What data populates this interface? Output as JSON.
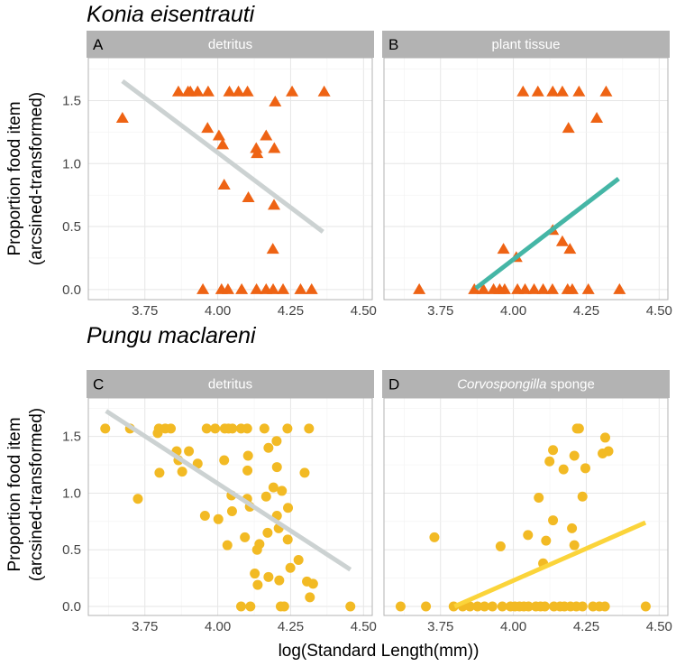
{
  "chart_data": {
    "type": "scatter",
    "xlabel": "log(Standard Length(mm))",
    "ylabel_line1": "Proportion food item",
    "ylabel_line2": "(arcsined-transformed)",
    "xlim": [
      3.556,
      4.53
    ],
    "ylim": [
      -0.08,
      1.84
    ],
    "x_ticks": [
      "3.75",
      "4.00",
      "4.25",
      "4.50"
    ],
    "x_tick_values": [
      3.75,
      4.0,
      4.25,
      4.5
    ],
    "y_ticks": [
      "0.0",
      "0.5",
      "1.0",
      "1.5"
    ],
    "y_tick_values": [
      0,
      0.5,
      1.0,
      1.5
    ],
    "grid": true,
    "colors": {
      "orange": "#EE6314",
      "yellow": "#F2BA24",
      "gray_line": "#CCD2D2",
      "teal_line": "#45B6A6",
      "yellow_line": "#FBD43A",
      "strip": "#B3B3B3",
      "grid": "#E6E6E6",
      "border": "#B3B3B3"
    },
    "species": [
      {
        "title": "Konia eisentrauti"
      },
      {
        "title": "Pungu maclareni"
      }
    ],
    "panels": [
      {
        "letter": "A",
        "strip_title": "detritus",
        "strip_title_italic": "",
        "marker": "triangle",
        "color": "#EE6314",
        "line_color": "#CCD2D2",
        "fit_line": [
          [
            3.673,
            1.655
          ],
          [
            4.361,
            0.458
          ]
        ],
        "points": [
          [
            3.865,
            1.57
          ],
          [
            3.898,
            1.57
          ],
          [
            3.906,
            1.57
          ],
          [
            3.931,
            1.57
          ],
          [
            3.967,
            1.57
          ],
          [
            4.04,
            1.57
          ],
          [
            4.071,
            1.57
          ],
          [
            4.102,
            1.57
          ],
          [
            4.255,
            1.57
          ],
          [
            4.365,
            1.57
          ],
          [
            3.673,
            1.36
          ],
          [
            4.197,
            1.49
          ],
          [
            3.965,
            1.28
          ],
          [
            4.004,
            1.22
          ],
          [
            4.017,
            1.15
          ],
          [
            4.166,
            1.22
          ],
          [
            4.132,
            1.12
          ],
          [
            4.135,
            1.08
          ],
          [
            4.194,
            1.12
          ],
          [
            4.022,
            0.83
          ],
          [
            4.105,
            0.73
          ],
          [
            4.193,
            0.67
          ],
          [
            4.189,
            0.32
          ],
          [
            3.949,
            0
          ],
          [
            4.013,
            0
          ],
          [
            4.035,
            0
          ],
          [
            4.082,
            0
          ],
          [
            4.133,
            0
          ],
          [
            4.166,
            0
          ],
          [
            4.19,
            0
          ],
          [
            4.224,
            0
          ],
          [
            4.284,
            0
          ],
          [
            4.322,
            0
          ]
        ]
      },
      {
        "letter": "B",
        "strip_title": "plant tissue",
        "strip_title_italic": "",
        "marker": "triangle",
        "color": "#EE6314",
        "line_color": "#45B6A6",
        "fit_line": [
          [
            3.871,
            0.01
          ],
          [
            4.361,
            0.88
          ]
        ],
        "points": [
          [
            4.033,
            1.57
          ],
          [
            4.084,
            1.57
          ],
          [
            4.135,
            1.57
          ],
          [
            4.168,
            1.57
          ],
          [
            4.225,
            1.57
          ],
          [
            4.318,
            1.57
          ],
          [
            4.286,
            1.36
          ],
          [
            4.189,
            1.28
          ],
          [
            4.135,
            0.47
          ],
          [
            4.168,
            0.38
          ],
          [
            4.194,
            0.32
          ],
          [
            3.966,
            0.32
          ],
          [
            4.01,
            0.255
          ],
          [
            3.677,
            0
          ],
          [
            3.866,
            0
          ],
          [
            3.897,
            0
          ],
          [
            3.932,
            0
          ],
          [
            3.953,
            0
          ],
          [
            3.97,
            0
          ],
          [
            4.014,
            0
          ],
          [
            4.04,
            0
          ],
          [
            4.071,
            0
          ],
          [
            4.102,
            0
          ],
          [
            4.134,
            0
          ],
          [
            4.186,
            0
          ],
          [
            4.202,
            0
          ],
          [
            4.257,
            0
          ],
          [
            4.364,
            0
          ]
        ]
      },
      {
        "letter": "C",
        "strip_title": "detritus",
        "strip_title_italic": "",
        "marker": "circle",
        "color": "#F2BA24",
        "line_color": "#CCD2D2",
        "fit_line": [
          [
            3.617,
            1.725
          ],
          [
            4.455,
            0.325
          ]
        ],
        "points": [
          [
            3.614,
            1.57
          ],
          [
            3.699,
            1.57
          ],
          [
            3.798,
            1.57
          ],
          [
            3.82,
            1.57
          ],
          [
            3.839,
            1.57
          ],
          [
            3.962,
            1.57
          ],
          [
            3.991,
            1.57
          ],
          [
            4.024,
            1.57
          ],
          [
            4.037,
            1.57
          ],
          [
            4.05,
            1.57
          ],
          [
            4.08,
            1.57
          ],
          [
            4.101,
            1.57
          ],
          [
            4.16,
            1.57
          ],
          [
            4.239,
            1.57
          ],
          [
            4.313,
            1.57
          ],
          [
            3.794,
            1.53
          ],
          [
            3.859,
            1.37
          ],
          [
            3.901,
            1.37
          ],
          [
            3.865,
            1.29
          ],
          [
            3.931,
            1.26
          ],
          [
            4.022,
            1.29
          ],
          [
            4.104,
            1.33
          ],
          [
            4.174,
            1.4
          ],
          [
            4.202,
            1.46
          ],
          [
            3.8,
            1.18
          ],
          [
            3.878,
            1.19
          ],
          [
            4.102,
            1.2
          ],
          [
            4.203,
            1.23
          ],
          [
            4.298,
            1.18
          ],
          [
            3.726,
            0.95
          ],
          [
            4.191,
            1.05
          ],
          [
            4.22,
            1.02
          ],
          [
            4.047,
            0.98
          ],
          [
            4.101,
            0.95
          ],
          [
            4.166,
            0.97
          ],
          [
            4.11,
            0.88
          ],
          [
            4.241,
            0.87
          ],
          [
            3.956,
            0.8
          ],
          [
            4.002,
            0.77
          ],
          [
            4.049,
            0.84
          ],
          [
            4.203,
            0.8
          ],
          [
            4.209,
            0.69
          ],
          [
            4.171,
            0.65
          ],
          [
            4.093,
            0.61
          ],
          [
            4.24,
            0.59
          ],
          [
            4.033,
            0.54
          ],
          [
            4.143,
            0.55
          ],
          [
            4.135,
            0.5
          ],
          [
            4.277,
            0.41
          ],
          [
            4.249,
            0.34
          ],
          [
            4.127,
            0.29
          ],
          [
            4.174,
            0.26
          ],
          [
            4.211,
            0.23
          ],
          [
            4.137,
            0.19
          ],
          [
            4.306,
            0.22
          ],
          [
            4.327,
            0.2
          ],
          [
            4.316,
            0.08
          ],
          [
            4.08,
            0
          ],
          [
            4.112,
            0
          ],
          [
            4.216,
            0
          ],
          [
            4.228,
            0
          ],
          [
            4.455,
            0
          ]
        ]
      },
      {
        "letter": "D",
        "strip_title": " sponge",
        "strip_title_italic": "Corvospongilla",
        "marker": "circle",
        "color": "#F2BA24",
        "line_color": "#FBD43A",
        "fit_line": [
          [
            3.798,
            0.0
          ],
          [
            4.453,
            0.74
          ]
        ],
        "points": [
          [
            4.218,
            1.57
          ],
          [
            4.225,
            1.57
          ],
          [
            4.315,
            1.49
          ],
          [
            4.306,
            1.35
          ],
          [
            4.326,
            1.37
          ],
          [
            4.136,
            1.38
          ],
          [
            4.209,
            1.33
          ],
          [
            4.124,
            1.28
          ],
          [
            4.172,
            1.21
          ],
          [
            4.247,
            1.22
          ],
          [
            4.087,
            0.96
          ],
          [
            4.237,
            0.97
          ],
          [
            4.136,
            0.76
          ],
          [
            4.201,
            0.69
          ],
          [
            3.729,
            0.61
          ],
          [
            4.05,
            0.63
          ],
          [
            4.112,
            0.58
          ],
          [
            4.209,
            0.54
          ],
          [
            3.956,
            0.53
          ],
          [
            4.102,
            0.38
          ],
          [
            3.613,
            0
          ],
          [
            3.7,
            0
          ],
          [
            3.795,
            0
          ],
          [
            3.826,
            0
          ],
          [
            3.851,
            0
          ],
          [
            3.877,
            0
          ],
          [
            3.901,
            0
          ],
          [
            3.928,
            0
          ],
          [
            3.962,
            0
          ],
          [
            3.99,
            0
          ],
          [
            4.005,
            0
          ],
          [
            4.021,
            0
          ],
          [
            4.036,
            0
          ],
          [
            4.052,
            0
          ],
          [
            4.077,
            0
          ],
          [
            4.093,
            0
          ],
          [
            4.108,
            0
          ],
          [
            4.139,
            0
          ],
          [
            4.16,
            0
          ],
          [
            4.175,
            0
          ],
          [
            4.196,
            0
          ],
          [
            4.216,
            0
          ],
          [
            4.237,
            0
          ],
          [
            4.273,
            0
          ],
          [
            4.295,
            0
          ],
          [
            4.314,
            0
          ],
          [
            4.454,
            0
          ]
        ]
      }
    ]
  }
}
